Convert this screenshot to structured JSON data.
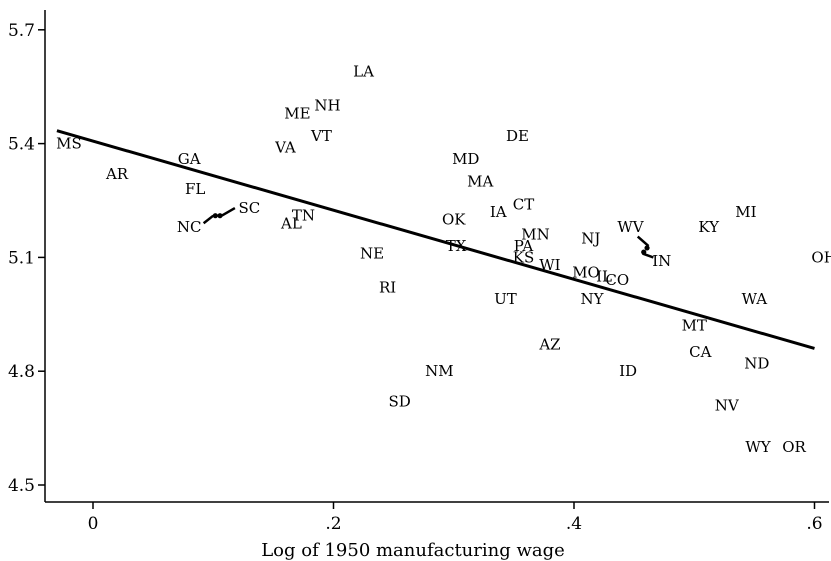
{
  "chart_data": {
    "type": "scatter",
    "title": "",
    "xlabel": "Log of 1950 manufacturing wage",
    "ylabel": "",
    "xlim": [
      -0.025,
      0.615
    ],
    "ylim": [
      4.47,
      5.73
    ],
    "xticks": [
      0,
      0.2,
      0.4,
      0.6
    ],
    "xtick_labels": [
      "0",
      ".2",
      ".4",
      ".6"
    ],
    "yticks": [
      4.5,
      4.8,
      5.1,
      5.4,
      5.7
    ],
    "ytick_labels": [
      "4.5",
      "4.8",
      "5.1",
      "5.4",
      "5.7"
    ],
    "grid": false,
    "legend": "none",
    "points": [
      {
        "label": "MS",
        "x": -0.02,
        "y": 5.4
      },
      {
        "label": "AR",
        "x": 0.02,
        "y": 5.32
      },
      {
        "label": "GA",
        "x": 0.08,
        "y": 5.36
      },
      {
        "label": "FL",
        "x": 0.085,
        "y": 5.28
      },
      {
        "label": "NC",
        "x": 0.08,
        "y": 5.18
      },
      {
        "label": "SC",
        "x": 0.13,
        "y": 5.23
      },
      {
        "label": "VA",
        "x": 0.16,
        "y": 5.39
      },
      {
        "label": "AL",
        "x": 0.165,
        "y": 5.19
      },
      {
        "label": "TN",
        "x": 0.175,
        "y": 5.21
      },
      {
        "label": "ME",
        "x": 0.17,
        "y": 5.48
      },
      {
        "label": "NH",
        "x": 0.195,
        "y": 5.5
      },
      {
        "label": "VT",
        "x": 0.19,
        "y": 5.42
      },
      {
        "label": "LA",
        "x": 0.225,
        "y": 5.59
      },
      {
        "label": "NE",
        "x": 0.232,
        "y": 5.11
      },
      {
        "label": "RI",
        "x": 0.245,
        "y": 5.02
      },
      {
        "label": "SD",
        "x": 0.255,
        "y": 4.72
      },
      {
        "label": "NM",
        "x": 0.288,
        "y": 4.8
      },
      {
        "label": "MD",
        "x": 0.31,
        "y": 5.36
      },
      {
        "label": "MA",
        "x": 0.322,
        "y": 5.3
      },
      {
        "label": "OK",
        "x": 0.3,
        "y": 5.2
      },
      {
        "label": "TX",
        "x": 0.302,
        "y": 5.13
      },
      {
        "label": "IA",
        "x": 0.337,
        "y": 5.22
      },
      {
        "label": "DE",
        "x": 0.353,
        "y": 5.42
      },
      {
        "label": "CT",
        "x": 0.358,
        "y": 5.24
      },
      {
        "label": "MN",
        "x": 0.368,
        "y": 5.16
      },
      {
        "label": "PA",
        "x": 0.358,
        "y": 5.13
      },
      {
        "label": "KS",
        "x": 0.358,
        "y": 5.1
      },
      {
        "label": "WI",
        "x": 0.38,
        "y": 5.08
      },
      {
        "label": "UT",
        "x": 0.343,
        "y": 4.99
      },
      {
        "label": "AZ",
        "x": 0.38,
        "y": 4.87
      },
      {
        "label": "MO",
        "x": 0.41,
        "y": 5.06
      },
      {
        "label": "IL",
        "x": 0.425,
        "y": 5.05
      },
      {
        "label": "CO",
        "x": 0.436,
        "y": 5.04
      },
      {
        "label": "NJ",
        "x": 0.414,
        "y": 5.15
      },
      {
        "label": "NY",
        "x": 0.415,
        "y": 4.99
      },
      {
        "label": "ID",
        "x": 0.445,
        "y": 4.8
      },
      {
        "label": "WV",
        "x": 0.447,
        "y": 5.18
      },
      {
        "label": "IN",
        "x": 0.473,
        "y": 5.09
      },
      {
        "label": "KY",
        "x": 0.512,
        "y": 5.18
      },
      {
        "label": "MT",
        "x": 0.5,
        "y": 4.92
      },
      {
        "label": "CA",
        "x": 0.505,
        "y": 4.85
      },
      {
        "label": "MI",
        "x": 0.543,
        "y": 5.22
      },
      {
        "label": "WA",
        "x": 0.55,
        "y": 4.99
      },
      {
        "label": "ND",
        "x": 0.552,
        "y": 4.82
      },
      {
        "label": "NV",
        "x": 0.527,
        "y": 4.71
      },
      {
        "label": "WY",
        "x": 0.553,
        "y": 4.6
      },
      {
        "label": "OR",
        "x": 0.583,
        "y": 4.6
      },
      {
        "label": "OH",
        "x": 0.608,
        "y": 5.1
      }
    ],
    "fit_line": {
      "x": [
        -0.03,
        0.6
      ],
      "y": [
        5.434,
        4.86
      ]
    },
    "connectors": [
      {
        "x": [
          0.092,
          0.1,
          0.107,
          0.118
        ],
        "y": [
          5.19,
          5.21,
          5.21,
          5.23
        ]
      },
      {
        "x": [
          0.453,
          0.462,
          0.457,
          0.466
        ],
        "y": [
          5.155,
          5.13,
          5.11,
          5.1
        ]
      }
    ]
  }
}
